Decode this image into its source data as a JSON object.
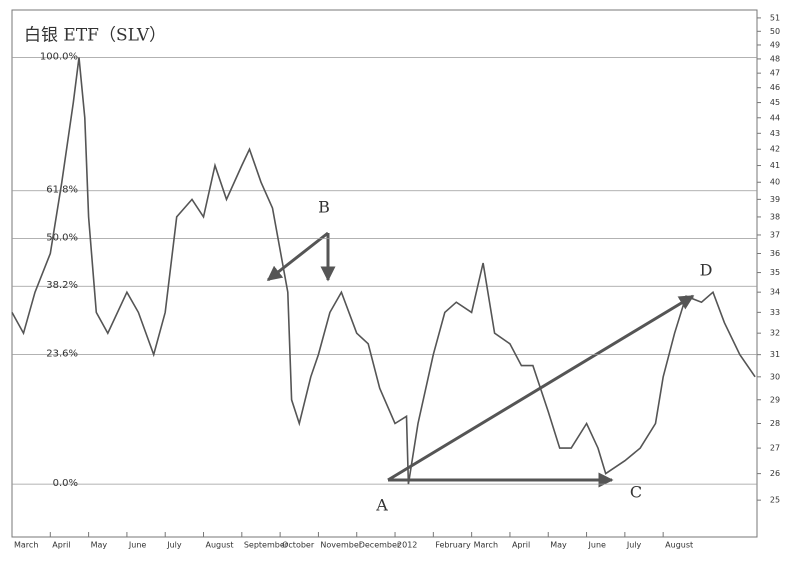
{
  "chart_data": {
    "type": "line",
    "title": "白银 ETF（SLV）",
    "x": [
      0,
      0.3,
      0.6,
      1.0,
      1.3,
      1.6,
      1.75,
      1.9,
      2.0,
      2.2,
      2.5,
      3.0,
      3.3,
      3.7,
      4.0,
      4.3,
      4.7,
      5.0,
      5.3,
      5.6,
      6.0,
      6.2,
      6.5,
      6.8,
      7.2,
      7.3,
      7.5,
      7.8,
      8.0,
      8.3,
      8.6,
      9.0,
      9.3,
      9.6,
      10.0,
      10.3,
      10.35,
      10.6,
      11.0,
      11.3,
      11.6,
      12.0,
      12.3,
      12.6,
      13.0,
      13.3,
      13.6,
      14.0,
      14.3,
      14.6,
      15.0,
      15.3,
      15.5,
      16.0,
      16.4,
      16.8,
      17.0,
      17.3,
      17.6,
      18.0,
      18.3,
      18.6,
      19.0,
      19.4
    ],
    "series": [
      {
        "color": "#555555",
        "values": [
          33,
          32,
          34,
          36,
          40,
          45,
          48.1,
          44,
          38,
          33,
          32,
          34,
          33,
          31,
          33,
          38,
          39,
          38,
          41,
          39,
          41,
          42,
          40,
          38.5,
          34,
          29,
          28,
          30,
          31,
          33,
          34,
          32,
          31.5,
          29.5,
          28,
          28.3,
          25.6,
          28,
          31,
          33,
          33.5,
          33,
          35.5,
          32,
          31.5,
          30.5,
          30.5,
          28.5,
          27,
          27,
          28,
          27,
          26,
          26.5,
          27,
          28,
          30,
          32,
          33.8,
          33.5,
          34,
          32.5,
          31,
          30
        ]
      }
    ],
    "xlim": [
      0,
      19.45
    ],
    "xticks": [
      {
        "value": 0,
        "label": "March"
      },
      {
        "value": 1,
        "label": "April"
      },
      {
        "value": 2,
        "label": "May"
      },
      {
        "value": 3,
        "label": "June"
      },
      {
        "value": 4,
        "label": "July"
      },
      {
        "value": 5,
        "label": "August"
      },
      {
        "value": 6,
        "label": "September"
      },
      {
        "value": 7,
        "label": "October"
      },
      {
        "value": 8,
        "label": "November"
      },
      {
        "value": 9,
        "label": "December"
      },
      {
        "value": 10,
        "label": "2012"
      },
      {
        "value": 11,
        "label": "February"
      },
      {
        "value": 12,
        "label": "March"
      },
      {
        "value": 13,
        "label": "April"
      },
      {
        "value": 14,
        "label": "May"
      },
      {
        "value": 15,
        "label": "June"
      },
      {
        "value": 16,
        "label": "July"
      },
      {
        "value": 17,
        "label": "August"
      }
    ],
    "ylim": [
      23.85,
      51.6
    ],
    "log_y": true,
    "yticks": [
      25,
      26,
      27,
      28,
      29,
      30,
      31,
      32,
      33,
      34,
      35,
      36,
      37,
      38,
      39,
      40,
      41,
      42,
      43,
      44,
      45,
      46,
      47,
      48,
      49,
      50,
      51
    ],
    "fib_levels": [
      {
        "value": 25.6,
        "label": "0.0%"
      },
      {
        "value": 31.0,
        "label": "23.6%"
      },
      {
        "value": 34.3,
        "label": "38.2%"
      },
      {
        "value": 36.8,
        "label": "50.0%"
      },
      {
        "value": 39.5,
        "label": "61.8%"
      },
      {
        "value": 48.1,
        "label": "100.0%"
      }
    ],
    "annotations": [
      "A",
      "B",
      "C",
      "D"
    ]
  }
}
